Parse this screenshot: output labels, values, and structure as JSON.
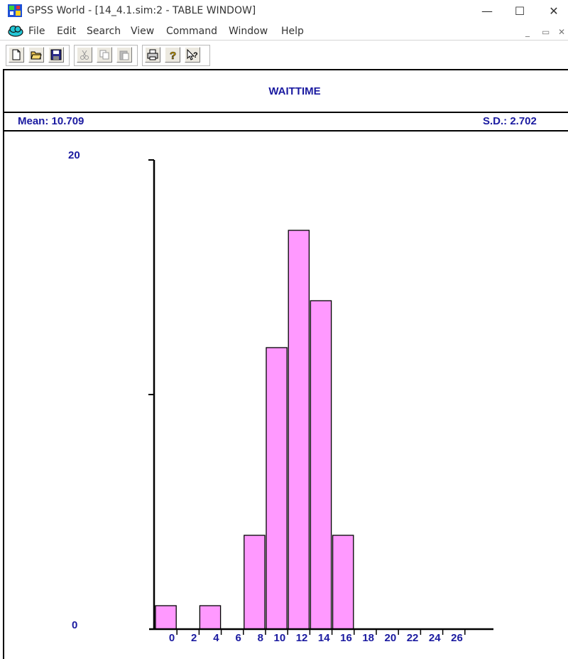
{
  "window": {
    "title": "GPSS World - [14_4.1.sim:2  -  TABLE WINDOW]",
    "minimize": "—",
    "maximize": "☐",
    "close": "✕"
  },
  "menu": {
    "items": [
      "File",
      "Edit",
      "Search",
      "View",
      "Command",
      "Window",
      "Help"
    ],
    "mdi_min": "_",
    "mdi_restore": "▭",
    "mdi_close": "✕"
  },
  "toolbar": {
    "buttons": [
      "new-icon",
      "open-icon",
      "save-icon",
      "cut-icon",
      "copy-icon",
      "paste-icon",
      "print-icon",
      "help-icon",
      "context-help-icon"
    ]
  },
  "table": {
    "name": "WAITTIME",
    "mean_label": "Mean: 10.709",
    "sd_label": "S.D.: 2.702"
  },
  "chart_data": {
    "type": "bar",
    "title": "WAITTIME",
    "ylim": [
      0,
      20
    ],
    "y_tick_labels": [
      "0",
      "20"
    ],
    "x_tick_labels": [
      "0",
      "2",
      "4",
      "6",
      "8",
      "10",
      "12",
      "14",
      "16",
      "18",
      "20",
      "22",
      "24",
      "26"
    ],
    "categories": [
      "0",
      "2",
      "4",
      "6",
      "8",
      "10",
      "12",
      "14",
      "16",
      "18",
      "20",
      "22",
      "24",
      "26"
    ],
    "values": [
      1,
      0,
      1,
      0,
      4,
      12,
      17,
      14,
      4,
      0,
      0,
      0,
      0,
      0
    ],
    "bar_color": "#ff99ff",
    "label_color": "#1a1aa0"
  }
}
